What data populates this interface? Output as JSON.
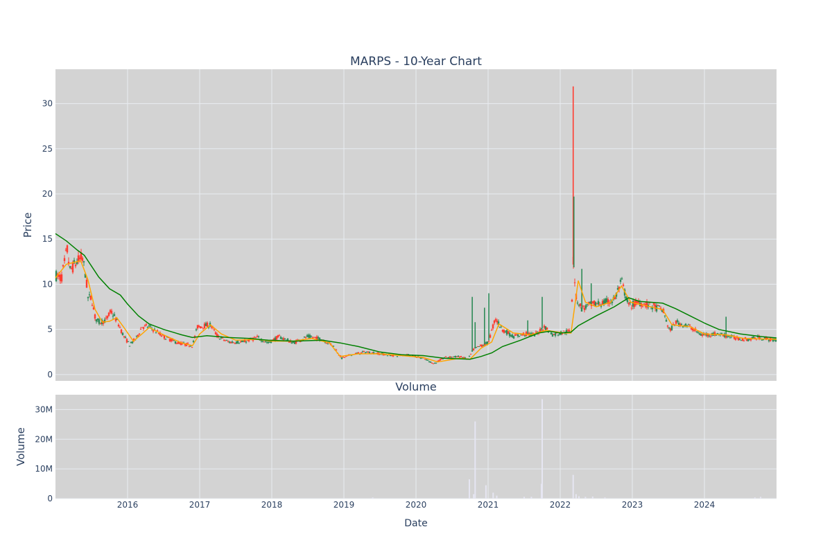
{
  "title": "MARPS - 10-Year Chart",
  "colors": {
    "plot_bg": "#d3d3d3",
    "grid": "#e8ecf2",
    "up": "#2e8b57",
    "down": "#ff3b2f",
    "short_ma": "#ffa500",
    "long_ma": "#008000",
    "volume_bar": "#e6e6f2",
    "text": "#2a3f5f"
  },
  "chart_data": [
    {
      "type": "candlestick",
      "panel": "price",
      "title": "MARPS - 10-Year Chart",
      "ylabel": "Price",
      "xlim": [
        2015.0,
        2025.0
      ],
      "ylim": [
        -0.7,
        33.8
      ],
      "y_ticks": [
        0,
        5,
        10,
        15,
        20,
        25,
        30
      ],
      "grid": true,
      "close_anchors": [
        [
          2015.0,
          11
        ],
        [
          2015.08,
          10.6
        ],
        [
          2015.13,
          12.5
        ],
        [
          2015.16,
          14
        ],
        [
          2015.2,
          11.5
        ],
        [
          2015.3,
          12.5
        ],
        [
          2015.37,
          13
        ],
        [
          2015.42,
          11
        ],
        [
          2015.45,
          8.5
        ],
        [
          2015.5,
          8.5
        ],
        [
          2015.55,
          6.3
        ],
        [
          2015.6,
          5.8
        ],
        [
          2015.7,
          6
        ],
        [
          2015.77,
          7
        ],
        [
          2015.85,
          6
        ],
        [
          2015.95,
          4.2
        ],
        [
          2016.03,
          3.3
        ],
        [
          2016.12,
          4
        ],
        [
          2016.2,
          5.3
        ],
        [
          2016.3,
          5.3
        ],
        [
          2016.5,
          4.2
        ],
        [
          2016.7,
          3.5
        ],
        [
          2016.9,
          3.2
        ],
        [
          2016.97,
          5.3
        ],
        [
          2017.15,
          5.5
        ],
        [
          2017.25,
          4.2
        ],
        [
          2017.4,
          3.6
        ],
        [
          2017.6,
          3.6
        ],
        [
          2017.8,
          4.1
        ],
        [
          2017.95,
          3.5
        ],
        [
          2018.1,
          4.2
        ],
        [
          2018.3,
          3.5
        ],
        [
          2018.5,
          4.2
        ],
        [
          2018.7,
          3.9
        ],
        [
          2018.85,
          3.2
        ],
        [
          2018.97,
          1.8
        ],
        [
          2019.1,
          2.2
        ],
        [
          2019.3,
          2.5
        ],
        [
          2019.5,
          2.3
        ],
        [
          2019.7,
          2.1
        ],
        [
          2019.9,
          2.2
        ],
        [
          2020.1,
          1.8
        ],
        [
          2020.25,
          1.2
        ],
        [
          2020.4,
          1.9
        ],
        [
          2020.6,
          2
        ],
        [
          2020.72,
          1.7
        ],
        [
          2020.8,
          2.8
        ],
        [
          2020.9,
          3.2
        ],
        [
          2021.0,
          3.5
        ],
        [
          2021.1,
          6.2
        ],
        [
          2021.2,
          5
        ],
        [
          2021.35,
          4.2
        ],
        [
          2021.5,
          4.5
        ],
        [
          2021.65,
          4.4
        ],
        [
          2021.78,
          5.3
        ],
        [
          2021.9,
          4.4
        ],
        [
          2022.05,
          4.7
        ],
        [
          2022.15,
          4.8
        ],
        [
          2022.18,
          13
        ],
        [
          2022.22,
          8.5
        ],
        [
          2022.3,
          7.3
        ],
        [
          2022.45,
          7.8
        ],
        [
          2022.6,
          7.9
        ],
        [
          2022.75,
          8.3
        ],
        [
          2022.85,
          10.3
        ],
        [
          2022.95,
          7.6
        ],
        [
          2023.1,
          8
        ],
        [
          2023.25,
          7.6
        ],
        [
          2023.42,
          7.2
        ],
        [
          2023.52,
          4.8
        ],
        [
          2023.6,
          5.8
        ],
        [
          2023.8,
          5.3
        ],
        [
          2023.95,
          4.4
        ],
        [
          2024.2,
          4.5
        ],
        [
          2024.3,
          4.3
        ],
        [
          2024.45,
          4
        ],
        [
          2024.6,
          3.9
        ],
        [
          2024.75,
          4.1
        ],
        [
          2024.9,
          3.9
        ],
        [
          2025.0,
          3.75
        ]
      ],
      "spikes": [
        {
          "x": 2020.78,
          "high": 8.6
        },
        {
          "x": 2020.82,
          "high": 5.8
        },
        {
          "x": 2020.95,
          "high": 7.4
        },
        {
          "x": 2021.01,
          "high": 9
        },
        {
          "x": 2021.55,
          "high": 6
        },
        {
          "x": 2021.75,
          "high": 8.6
        },
        {
          "x": 2022.18,
          "high": 31.9
        },
        {
          "x": 2022.19,
          "high": 19.7
        },
        {
          "x": 2022.3,
          "high": 11.7
        },
        {
          "x": 2022.43,
          "high": 10.1
        },
        {
          "x": 2024.3,
          "high": 6.4
        }
      ],
      "series": [
        {
          "name": "short moving average",
          "color": "#ffa500",
          "points": [
            [
              2015.0,
              10.7
            ],
            [
              2015.15,
              12.2
            ],
            [
              2015.35,
              12.6
            ],
            [
              2015.45,
              10.5
            ],
            [
              2015.55,
              7.2
            ],
            [
              2015.65,
              5.8
            ],
            [
              2015.75,
              5.9
            ],
            [
              2015.85,
              6.3
            ],
            [
              2015.95,
              5.2
            ],
            [
              2016.08,
              3.7
            ],
            [
              2016.2,
              4.5
            ],
            [
              2016.3,
              5.2
            ],
            [
              2016.5,
              4.4
            ],
            [
              2016.75,
              3.5
            ],
            [
              2016.9,
              3.2
            ],
            [
              2017.0,
              4.5
            ],
            [
              2017.15,
              5.5
            ],
            [
              2017.3,
              4.5
            ],
            [
              2017.5,
              3.8
            ],
            [
              2017.8,
              3.9
            ],
            [
              2018.0,
              3.7
            ],
            [
              2018.3,
              3.7
            ],
            [
              2018.55,
              4
            ],
            [
              2018.8,
              3.5
            ],
            [
              2018.95,
              2
            ],
            [
              2019.2,
              2.3
            ],
            [
              2019.5,
              2.3
            ],
            [
              2019.8,
              2.1
            ],
            [
              2020.1,
              1.9
            ],
            [
              2020.3,
              1.4
            ],
            [
              2020.6,
              1.8
            ],
            [
              2020.75,
              1.7
            ],
            [
              2020.9,
              2.9
            ],
            [
              2021.05,
              3.6
            ],
            [
              2021.15,
              5.6
            ],
            [
              2021.35,
              4.6
            ],
            [
              2021.6,
              4.4
            ],
            [
              2021.8,
              4.9
            ],
            [
              2022.05,
              4.6
            ],
            [
              2022.15,
              4.6
            ],
            [
              2022.25,
              10.4
            ],
            [
              2022.35,
              8
            ],
            [
              2022.5,
              7.5
            ],
            [
              2022.7,
              8
            ],
            [
              2022.85,
              9.8
            ],
            [
              2022.98,
              8
            ],
            [
              2023.2,
              7.6
            ],
            [
              2023.42,
              7.2
            ],
            [
              2023.55,
              5.5
            ],
            [
              2023.8,
              5.3
            ],
            [
              2024.0,
              4.5
            ],
            [
              2024.3,
              4.4
            ],
            [
              2024.55,
              4
            ],
            [
              2025.0,
              3.9
            ]
          ]
        },
        {
          "name": "long moving average",
          "color": "#008000",
          "points": [
            [
              2015.0,
              15.6
            ],
            [
              2015.15,
              14.8
            ],
            [
              2015.3,
              13.8
            ],
            [
              2015.4,
              13.2
            ],
            [
              2015.5,
              12
            ],
            [
              2015.6,
              10.8
            ],
            [
              2015.75,
              9.5
            ],
            [
              2015.9,
              8.8
            ],
            [
              2016.0,
              7.8
            ],
            [
              2016.15,
              6.5
            ],
            [
              2016.3,
              5.6
            ],
            [
              2016.5,
              5
            ],
            [
              2016.75,
              4.4
            ],
            [
              2016.9,
              4.1
            ],
            [
              2017.1,
              4.3
            ],
            [
              2017.4,
              4.1
            ],
            [
              2017.7,
              4
            ],
            [
              2017.95,
              3.8
            ],
            [
              2018.3,
              3.7
            ],
            [
              2018.7,
              3.8
            ],
            [
              2018.95,
              3.5
            ],
            [
              2019.2,
              3.1
            ],
            [
              2019.5,
              2.5
            ],
            [
              2019.8,
              2.2
            ],
            [
              2020.1,
              2.1
            ],
            [
              2020.4,
              1.8
            ],
            [
              2020.75,
              1.7
            ],
            [
              2020.9,
              2
            ],
            [
              2021.05,
              2.4
            ],
            [
              2021.2,
              3.1
            ],
            [
              2021.45,
              3.8
            ],
            [
              2021.7,
              4.6
            ],
            [
              2021.85,
              4.8
            ],
            [
              2022.0,
              4.6
            ],
            [
              2022.15,
              4.7
            ],
            [
              2022.25,
              5.4
            ],
            [
              2022.5,
              6.5
            ],
            [
              2022.75,
              7.5
            ],
            [
              2022.95,
              8.5
            ],
            [
              2023.1,
              8.1
            ],
            [
              2023.42,
              7.9
            ],
            [
              2023.6,
              7.3
            ],
            [
              2023.8,
              6.5
            ],
            [
              2024.0,
              5.7
            ],
            [
              2024.2,
              5
            ],
            [
              2024.5,
              4.5
            ],
            [
              2024.8,
              4.2
            ],
            [
              2025.0,
              4.05
            ]
          ]
        }
      ]
    },
    {
      "type": "bar",
      "panel": "volume",
      "title": "Volume",
      "xlabel": "Date",
      "ylabel": "Volume",
      "xlim": [
        2015.0,
        2025.0
      ],
      "ylim": [
        0,
        35000000
      ],
      "y_ticks": [
        0,
        10000000,
        20000000,
        30000000
      ],
      "y_tick_labels": [
        "0",
        "10M",
        "20M",
        "30M"
      ],
      "x_ticks": [
        2016,
        2017,
        2018,
        2019,
        2020,
        2021,
        2022,
        2023,
        2024
      ],
      "x_tick_labels": [
        "2016",
        "2017",
        "2018",
        "2019",
        "2020",
        "2021",
        "2022",
        "2023",
        "2024"
      ],
      "grid": true,
      "x": [
        2019.4,
        2020.74,
        2020.8,
        2020.82,
        2020.97,
        2021.07,
        2021.12,
        2021.5,
        2021.6,
        2021.74,
        2021.75,
        2022.18,
        2022.22,
        2022.26,
        2022.35,
        2022.45,
        2022.62,
        2024.7,
        2024.78
      ],
      "values": [
        400000,
        6500000,
        1500000,
        26000000,
        4500000,
        2000000,
        1000000,
        600000,
        600000,
        5000000,
        33500000,
        8000000,
        1500000,
        800000,
        600000,
        700000,
        400000,
        400000,
        600000
      ]
    }
  ]
}
